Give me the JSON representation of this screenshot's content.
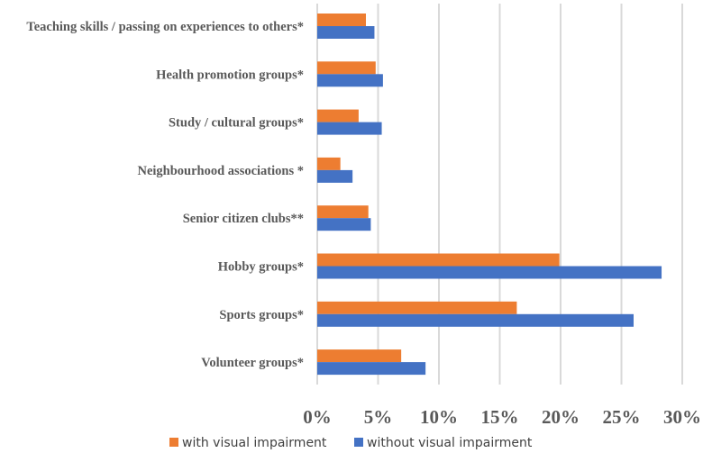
{
  "chart_data": {
    "type": "bar",
    "orientation": "horizontal",
    "title": "",
    "xlabel": "",
    "ylabel": "",
    "categories": [
      "Teaching skills / passing on experiences to others*",
      "Health promotion groups*",
      "Study / cultural groups*",
      "Neighbourhood associations *",
      "Senior citizen clubs**",
      "Hobby groups*",
      "Sports groups*",
      "Volunteer groups*"
    ],
    "series": [
      {
        "name": "with visual impairment",
        "color": "#ED7D31",
        "values": [
          4.0,
          4.8,
          3.4,
          1.9,
          4.2,
          19.9,
          16.4,
          6.9
        ]
      },
      {
        "name": "without visual impairment",
        "color": "#4472C4",
        "values": [
          4.7,
          5.4,
          5.3,
          2.9,
          4.4,
          28.3,
          26.0,
          8.9
        ]
      }
    ],
    "xlim": [
      0,
      30
    ],
    "xticks": [
      0,
      5,
      10,
      15,
      20,
      25,
      30
    ],
    "xtick_labels": [
      "0%",
      "5%",
      "10%",
      "15%",
      "20%",
      "25%",
      "30%"
    ],
    "grid": true,
    "legend_position": "bottom"
  }
}
